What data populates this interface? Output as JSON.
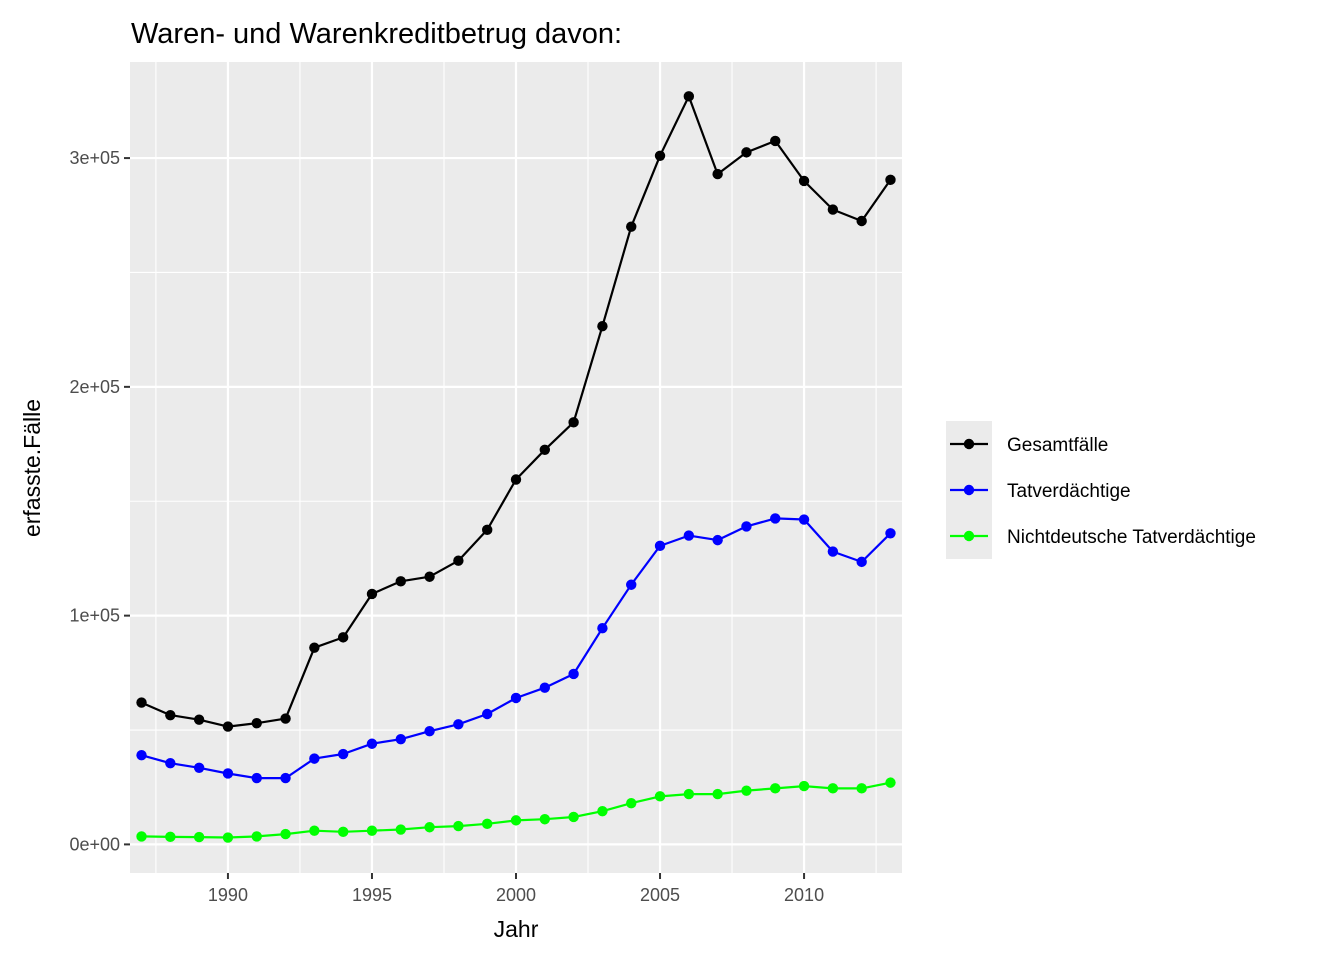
{
  "chart_data": {
    "type": "line",
    "title": "Waren- und Warenkreditbetrug davon:",
    "xlabel": "Jahr",
    "ylabel": "erfasste.Fälle",
    "xlim": [
      1986.6,
      2013.4
    ],
    "ylim": [
      -12500,
      342000
    ],
    "x_ticks": [
      1990,
      1995,
      2000,
      2005,
      2010
    ],
    "x_tick_labels": [
      "1990",
      "1995",
      "2000",
      "2005",
      "2010"
    ],
    "y_ticks": [
      0,
      100000,
      200000,
      300000
    ],
    "y_tick_labels": [
      "0e+00",
      "1e+05",
      "2e+05",
      "3e+05"
    ],
    "grid": true,
    "legend_position": "right",
    "x": [
      1987,
      1988,
      1989,
      1990,
      1991,
      1992,
      1993,
      1994,
      1995,
      1996,
      1997,
      1998,
      1999,
      2000,
      2001,
      2002,
      2003,
      2004,
      2005,
      2006,
      2007,
      2008,
      2009,
      2010,
      2011,
      2012,
      2013
    ],
    "series": [
      {
        "name": "Gesamtfälle",
        "color": "#000000",
        "values": [
          62000,
          56500,
          54500,
          51500,
          53000,
          55000,
          86000,
          90500,
          109500,
          115000,
          117000,
          124000,
          137500,
          159500,
          172500,
          184500,
          226500,
          270000,
          301000,
          327000,
          293000,
          302500,
          307500,
          290000,
          277500,
          272500,
          290500
        ]
      },
      {
        "name": "Tatverdächtige",
        "color": "#0000ff",
        "values": [
          39000,
          35500,
          33500,
          31000,
          29000,
          29000,
          37500,
          39500,
          44000,
          46000,
          49500,
          52500,
          57000,
          64000,
          68500,
          74500,
          94500,
          113500,
          130500,
          135000,
          133000,
          139000,
          142500,
          142000,
          128000,
          123500,
          136000
        ]
      },
      {
        "name": "Nichtdeutsche Tatverdächtige",
        "color": "#00ff00",
        "values": [
          3500,
          3300,
          3200,
          3000,
          3500,
          4500,
          6000,
          5500,
          6000,
          6500,
          7500,
          8000,
          9000,
          10500,
          11000,
          12000,
          14500,
          18000,
          21000,
          22000,
          22000,
          23500,
          24500,
          25500,
          24500,
          24500,
          27000
        ]
      }
    ]
  }
}
